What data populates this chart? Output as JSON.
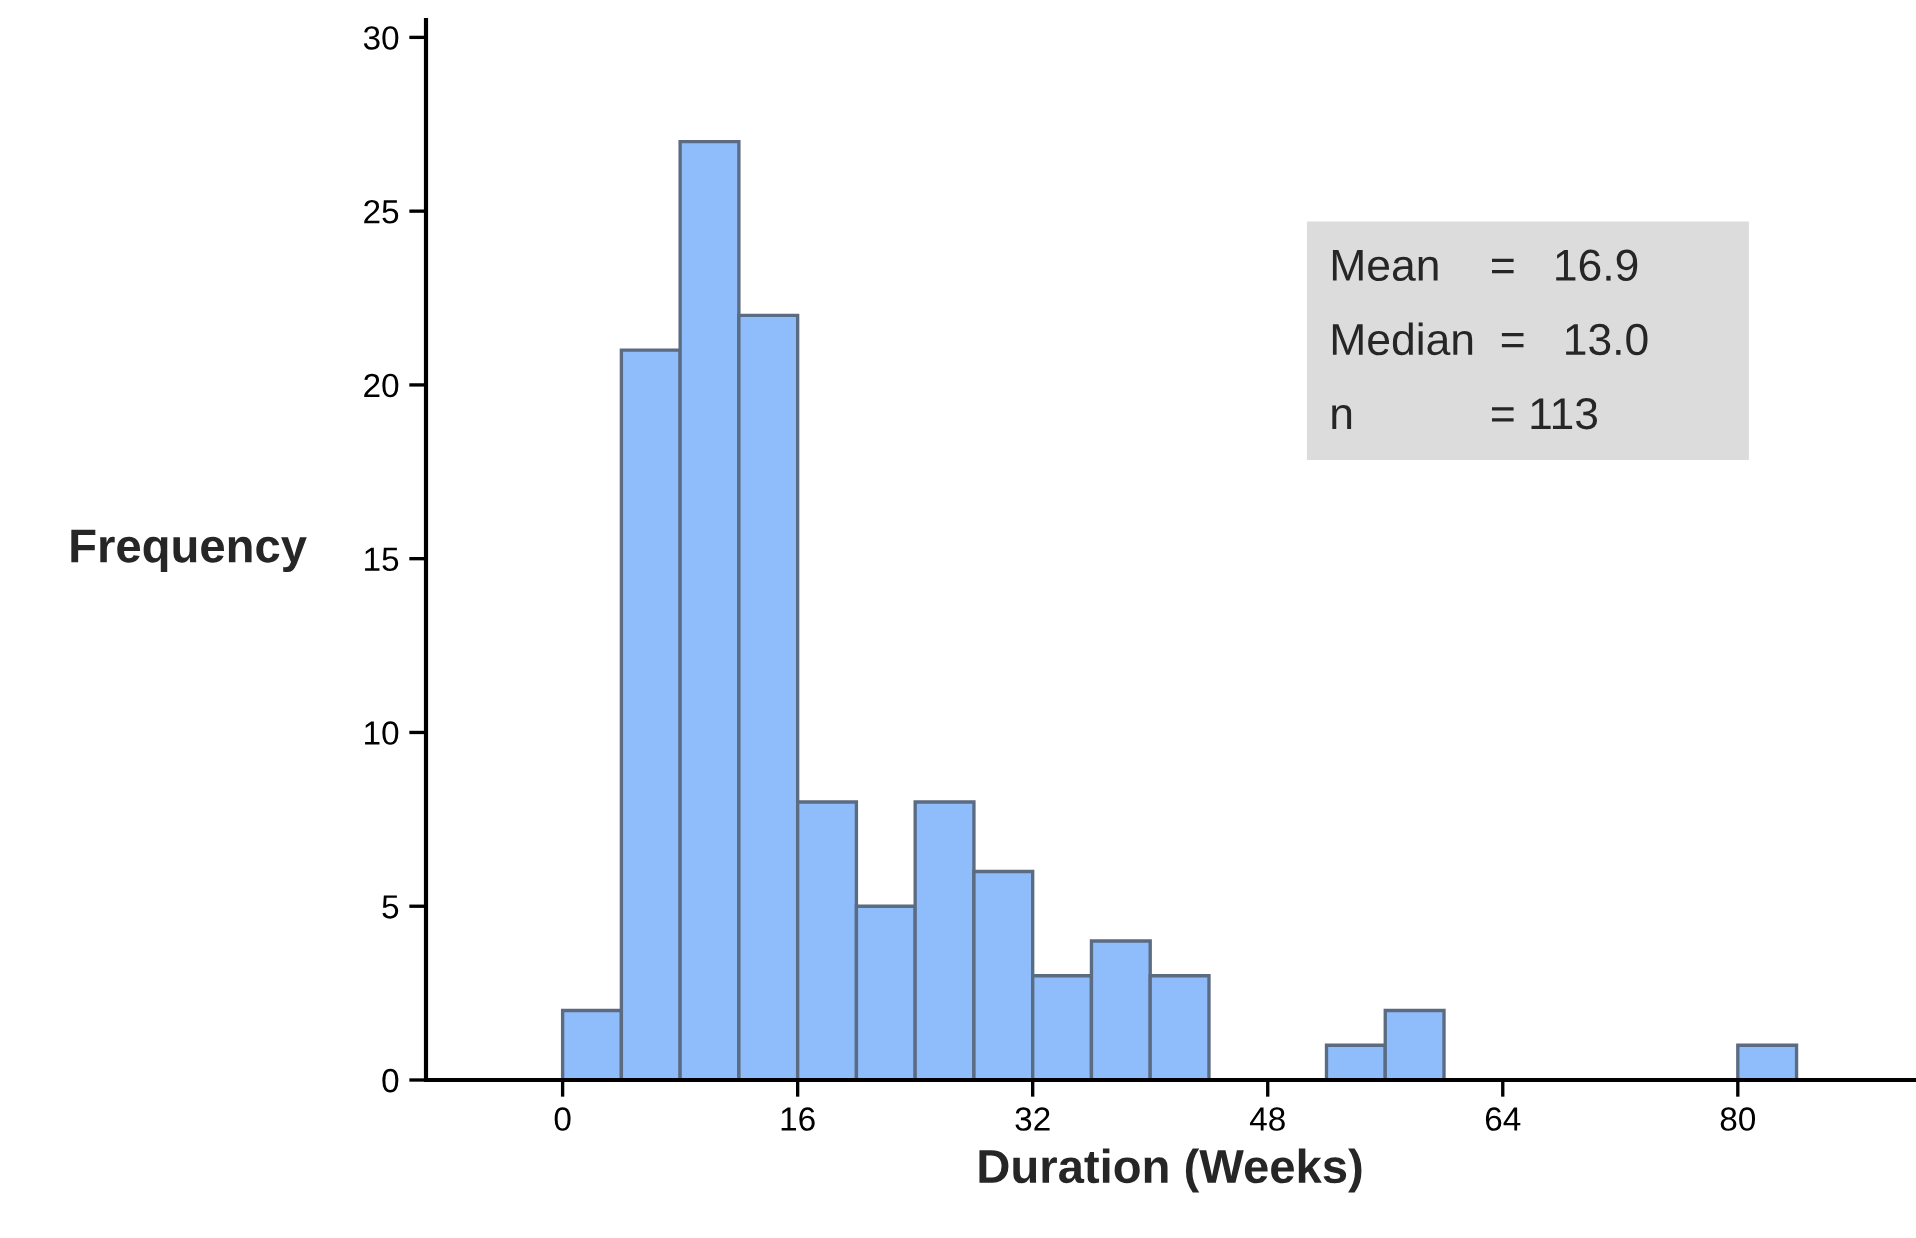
{
  "chart_data": {
    "type": "histogram",
    "xlabel": "Duration (Weeks)",
    "ylabel": "Frequency",
    "bins": [
      0,
      4,
      8,
      12,
      16,
      20,
      24,
      28,
      32,
      36,
      40,
      44,
      48,
      52,
      56,
      60,
      64,
      68,
      72,
      76,
      80,
      84
    ],
    "values": [
      2,
      21,
      27,
      22,
      8,
      5,
      8,
      6,
      3,
      4,
      3,
      0,
      0,
      1,
      2,
      0,
      0,
      0,
      0,
      0,
      1
    ],
    "color": "#8fbcfa",
    "xlim": [
      -9.3,
      92
    ],
    "xticks": [
      0,
      16,
      32,
      48,
      64,
      80
    ],
    "ylim": [
      0,
      30.5
    ],
    "yticks": [
      0,
      5,
      10,
      15,
      20,
      25,
      30
    ],
    "grid": false,
    "legend": false,
    "annotations": [
      "Mean    =   16.9",
      "Median  =   13.0",
      "n           = 113"
    ]
  }
}
